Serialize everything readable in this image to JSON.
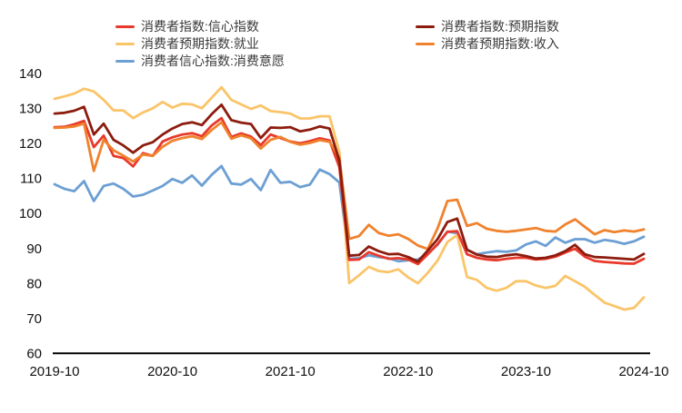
{
  "chart_data": {
    "type": "line",
    "title": "",
    "grid": false,
    "background": "#ffffff",
    "axis_color": "#000000",
    "tick_label_color": "#111111",
    "legend_position": "top",
    "ylim": [
      60,
      140
    ],
    "ytick_step": 10,
    "yticks": [
      60,
      70,
      80,
      90,
      100,
      110,
      120,
      130,
      140
    ],
    "x_tick_labels": [
      "2019-10",
      "2020-10",
      "2021-10",
      "2022-10",
      "2023-10",
      "2024-10"
    ],
    "x": [
      "2019-10",
      "2019-11",
      "2019-12",
      "2020-01",
      "2020-02",
      "2020-03",
      "2020-04",
      "2020-05",
      "2020-06",
      "2020-07",
      "2020-08",
      "2020-09",
      "2020-10",
      "2020-11",
      "2020-12",
      "2021-01",
      "2021-02",
      "2021-03",
      "2021-04",
      "2021-05",
      "2021-06",
      "2021-07",
      "2021-08",
      "2021-09",
      "2021-10",
      "2021-11",
      "2021-12",
      "2022-01",
      "2022-02",
      "2022-03",
      "2022-04",
      "2022-05",
      "2022-06",
      "2022-07",
      "2022-08",
      "2022-09",
      "2022-10",
      "2022-11",
      "2022-12",
      "2023-01",
      "2023-02",
      "2023-03",
      "2023-04",
      "2023-05",
      "2023-06",
      "2023-07",
      "2023-08",
      "2023-09",
      "2023-10",
      "2023-11",
      "2023-12",
      "2024-01",
      "2024-02",
      "2024-03",
      "2024-04",
      "2024-05",
      "2024-06",
      "2024-07",
      "2024-08",
      "2024-09",
      "2024-10"
    ],
    "series": [
      {
        "name": "消费者指数:信心指数",
        "color": "#e8392b",
        "legend_col": 0,
        "legend_row": 0,
        "values": [
          124.6,
          124.7,
          125.4,
          126.4,
          118.9,
          122.2,
          116.4,
          115.8,
          113.4,
          117.2,
          116.4,
          120.5,
          121.7,
          122.5,
          122.9,
          122.0,
          125.1,
          127.2,
          121.8,
          122.8,
          121.9,
          119.5,
          122.5,
          121.5,
          120.5,
          120.0,
          120.6,
          121.4,
          120.8,
          113.2,
          86.7,
          86.8,
          88.9,
          87.9,
          87.0,
          87.2,
          86.8,
          85.5,
          88.3,
          91.2,
          94.7,
          94.9,
          88.3,
          87.3,
          86.8,
          86.6,
          87.0,
          87.3,
          87.3,
          86.8,
          87.0,
          87.6,
          88.8,
          89.9,
          87.6,
          86.4,
          86.1,
          85.9,
          85.7,
          85.6,
          87.0
        ]
      },
      {
        "name": "消费者指数:预期指数",
        "color": "#8c1c0e",
        "legend_col": 1,
        "legend_row": 0,
        "values": [
          128.5,
          128.7,
          129.3,
          130.4,
          122.5,
          125.6,
          121.0,
          119.4,
          117.3,
          119.4,
          120.3,
          122.5,
          124.2,
          125.5,
          126.0,
          125.2,
          128.3,
          131.0,
          126.6,
          125.9,
          125.5,
          121.5,
          124.5,
          124.4,
          124.6,
          123.4,
          123.9,
          124.8,
          124.2,
          115.0,
          87.9,
          88.1,
          90.5,
          89.2,
          88.3,
          88.4,
          87.5,
          86.2,
          89.4,
          92.6,
          97.5,
          98.5,
          89.6,
          88.2,
          87.6,
          87.5,
          88.0,
          88.3,
          87.8,
          87.1,
          87.3,
          88.0,
          89.2,
          91.0,
          88.3,
          87.5,
          87.4,
          87.2,
          87.0,
          86.8,
          88.4
        ]
      },
      {
        "name": "消费者预期指数:就业",
        "color": "#fac469",
        "legend_col": 0,
        "legend_row": 1,
        "values": [
          132.7,
          133.4,
          134.2,
          135.6,
          134.8,
          132.4,
          129.4,
          129.4,
          127.2,
          128.8,
          130.0,
          131.8,
          130.2,
          131.3,
          131.1,
          130.0,
          133.0,
          136.0,
          132.4,
          131.1,
          129.8,
          130.8,
          129.2,
          128.9,
          128.5,
          127.1,
          127.1,
          127.7,
          127.7,
          117.5,
          80.1,
          82.3,
          84.7,
          83.5,
          83.2,
          84.0,
          81.7,
          80.0,
          83.0,
          86.5,
          91.8,
          93.8,
          81.8,
          81.0,
          78.7,
          77.9,
          78.7,
          80.6,
          80.6,
          79.4,
          78.7,
          79.3,
          82.1,
          80.6,
          79.0,
          76.7,
          74.5,
          73.5,
          72.5,
          73.0,
          76.0
        ]
      },
      {
        "name": "消费者预期指数:收入",
        "color": "#f0822d",
        "legend_col": 1,
        "legend_row": 1,
        "values": [
          124.4,
          124.5,
          124.8,
          125.6,
          112.1,
          121.0,
          118.0,
          116.5,
          114.8,
          116.8,
          116.4,
          119.0,
          120.7,
          121.5,
          122.0,
          121.2,
          123.8,
          126.0,
          121.3,
          122.3,
          121.4,
          118.5,
          121.0,
          121.8,
          120.4,
          119.6,
          120.1,
          120.9,
          120.4,
          116.0,
          92.7,
          93.5,
          96.7,
          94.4,
          93.6,
          94.0,
          92.7,
          90.8,
          89.8,
          95.7,
          103.5,
          103.9,
          96.4,
          97.2,
          95.6,
          95.0,
          94.7,
          95.0,
          95.4,
          95.8,
          95.0,
          94.8,
          96.8,
          98.3,
          96.1,
          94.0,
          95.2,
          94.6,
          95.1,
          94.8,
          95.4
        ]
      },
      {
        "name": "消费者信心指数:消费意愿",
        "color": "#6c9fd3",
        "legend_col": 0,
        "legend_row": 2,
        "values": [
          108.3,
          107.0,
          106.3,
          109.2,
          103.5,
          107.8,
          108.5,
          107.0,
          104.8,
          105.3,
          106.5,
          107.8,
          109.8,
          108.7,
          110.8,
          107.9,
          111.0,
          113.5,
          108.5,
          108.2,
          109.8,
          106.6,
          112.4,
          108.7,
          109.0,
          107.5,
          108.2,
          112.5,
          111.2,
          108.8,
          87.0,
          87.2,
          88.0,
          87.5,
          87.2,
          86.3,
          86.6,
          86.8,
          88.5,
          91.0,
          94.8,
          94.3,
          89.6,
          88.3,
          88.8,
          89.2,
          89.0,
          89.4,
          91.1,
          92.0,
          90.7,
          93.1,
          91.6,
          92.6,
          92.6,
          91.6,
          92.4,
          92.0,
          91.3,
          92.0,
          93.3
        ]
      }
    ]
  }
}
